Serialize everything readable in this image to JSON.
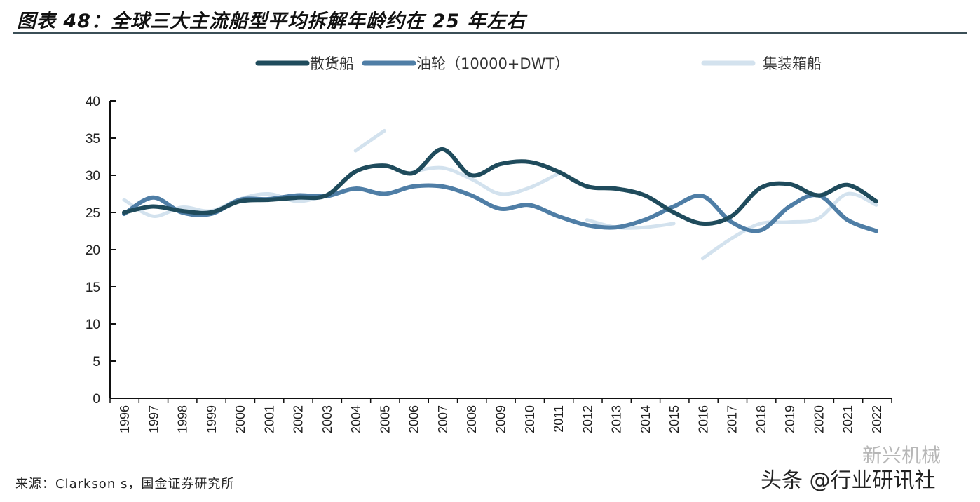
{
  "title": "图表 48：全球三大主流船型平均拆解年龄约在 25 年左右",
  "source": "来源：Clarkson s，国金证券研究所",
  "watermark": "头条 @行业研讯社",
  "watermark2": "新兴机械",
  "chart_data": {
    "type": "line",
    "title": "图表 48：全球三大主流船型平均拆解年龄约在 25 年左右",
    "categories": [
      "1996",
      "1997",
      "1998",
      "1999",
      "2000",
      "2001",
      "2002",
      "2003",
      "2004",
      "2005",
      "2006",
      "2007",
      "2008",
      "2009",
      "2010",
      "2011",
      "2012",
      "2013",
      "2014",
      "2015",
      "2016",
      "2017",
      "2018",
      "2019",
      "2020",
      "2021",
      "2022"
    ],
    "ylim": [
      0,
      40
    ],
    "yticks": [
      0,
      5,
      10,
      15,
      20,
      25,
      30,
      35,
      40
    ],
    "grid": false,
    "legend": "top",
    "series": [
      {
        "name": "散货船",
        "color": "#1f4b5c",
        "values": [
          25,
          25.8,
          25.2,
          25,
          26.5,
          26.7,
          27,
          27.3,
          30.5,
          31.3,
          30.3,
          33.5,
          30,
          31.5,
          31.8,
          30.5,
          28.5,
          28.2,
          27.3,
          25,
          23.5,
          24.5,
          28.3,
          28.8,
          27.3,
          28.7,
          26.5
        ]
      },
      {
        "name": "油轮（10000+DWT）",
        "color": "#4f7ea6",
        "values": [
          24.8,
          27,
          25,
          24.8,
          26.7,
          26.8,
          27.3,
          27.2,
          28.2,
          27.5,
          28.5,
          28.5,
          27.3,
          25.5,
          26,
          24.5,
          23.3,
          23,
          24,
          25.8,
          27.2,
          23.7,
          22.6,
          25.8,
          27.3,
          24,
          22.5
        ]
      },
      {
        "name": "集装箱船",
        "color": "#d3e2ee",
        "values": [
          26.7,
          24.5,
          25.7,
          25.2,
          26.8,
          27.5,
          26.5,
          27.3,
          33.3,
          36,
          30.5,
          31,
          29.5,
          27.5,
          28.3,
          30.2,
          24,
          23,
          23,
          23.5,
          18.8,
          21.5,
          23.5,
          23.7,
          24.2,
          27.5,
          26
        ],
        "breaks_after": [
          "2003",
          "2005",
          "2011",
          "2015"
        ]
      }
    ]
  }
}
